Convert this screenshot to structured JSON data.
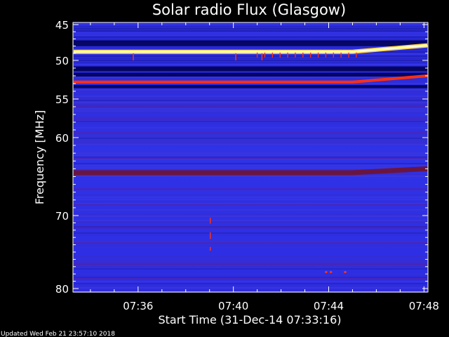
{
  "chart_data": {
    "type": "heatmap",
    "title": "Solar radio Flux (Glasgow)",
    "xlabel": "Start Time (31-Dec-14 07:33:16)",
    "ylabel": "Frequency [MHz]",
    "x_start": "07:33:16",
    "x_end": "07:48:10",
    "x_ticks": [
      "07:36",
      "07:40",
      "07:44",
      "07:48"
    ],
    "x_tick_minutes": [
      36,
      40,
      44,
      48
    ],
    "ylim": [
      45,
      80
    ],
    "y_ticks": [
      45,
      50,
      55,
      60,
      70,
      80
    ],
    "y_minor_ticks": [
      46,
      47,
      48,
      49,
      51,
      52,
      53,
      54,
      56,
      57,
      58,
      59,
      61,
      62,
      63,
      64,
      65,
      66,
      67,
      68,
      69,
      71,
      72,
      73,
      74,
      75,
      76,
      77,
      78,
      79
    ],
    "y_scale": "nonlinear",
    "colors": {
      "background": "#2d2ee0",
      "hot_white": "#ffffd0",
      "hot_yellow": "#ffd040",
      "hot_red": "#ff3010",
      "maroon": "#6a1540",
      "dark_navy": "#000040"
    },
    "features": [
      {
        "name": "bright emission line",
        "freq_start": 48.8,
        "freq_end": 47.9,
        "shift_after": "07:45"
      },
      {
        "name": "red emission line",
        "freq_start": 52.8,
        "freq_end": 52.0,
        "shift_after": "07:45"
      },
      {
        "name": "maroon band",
        "freq_start": 64.5,
        "freq_end": 64.0,
        "shift_after": "07:45"
      },
      {
        "name": "isolated spikes",
        "times": [
          "07:39"
        ],
        "freq_range": [
          70,
          75
        ]
      }
    ]
  },
  "footer": {
    "updated_text": "Updated Wed Feb 21 23:57:10 2018"
  }
}
